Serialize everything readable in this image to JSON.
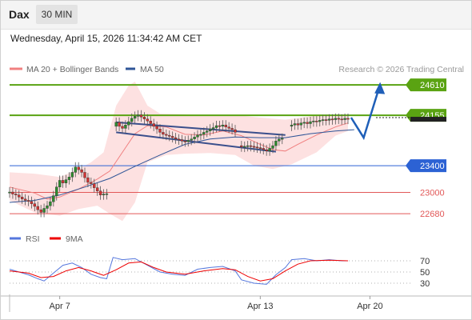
{
  "header": {
    "symbol": "Dax",
    "timeframe": "30 MIN",
    "datetime": "Wednesday, April 15, 2026 11:34:42 AM CET"
  },
  "legend": {
    "ma20": "MA 20 + Bollinger Bands",
    "ma50": "MA 50",
    "copyright": "Research © 2026 Trading Central",
    "rsi": "RSI",
    "rsi_ma": "9MA"
  },
  "colors": {
    "ma20": "#f08080",
    "ma50": "#2f5597",
    "bollinger_fill": "#fddede",
    "resistance": "#5aa312",
    "pivot": "#2c62d4",
    "support": "#e25858",
    "current_price": "#222222",
    "candle_up": "#2e8b2e",
    "candle_down": "#d23232",
    "rsi": "#5577dd",
    "rsi_ma": "#ee0000",
    "scenario_arrow": "#1f5fb8"
  },
  "chart_data": {
    "type": "candlestick",
    "price_axis": {
      "min": 22550,
      "max": 24780
    },
    "levels": [
      {
        "label": "24610",
        "value": 24610,
        "kind": "resistance"
      },
      {
        "label": "24155",
        "value": 24155,
        "kind": "resistance"
      },
      {
        "label": "23400",
        "value": 23400,
        "kind": "pivot"
      },
      {
        "label": "23000",
        "value": 23000,
        "kind": "support"
      },
      {
        "label": "22680",
        "value": 22680,
        "kind": "support"
      }
    ],
    "last_price": 24120,
    "x_ticks": [
      {
        "label": "Apr 7",
        "index": 16
      },
      {
        "label": "Apr 13",
        "index": 80
      },
      {
        "label": "Apr 20",
        "index": 115
      }
    ],
    "candles": [
      {
        "i": 0,
        "o": 22990,
        "c": 23005
      },
      {
        "i": 1,
        "o": 23005,
        "c": 22975
      },
      {
        "i": 2,
        "o": 22975,
        "c": 22960
      },
      {
        "i": 3,
        "o": 22960,
        "c": 22930
      },
      {
        "i": 4,
        "o": 22930,
        "c": 22900
      },
      {
        "i": 5,
        "o": 22900,
        "c": 22880
      },
      {
        "i": 6,
        "o": 22880,
        "c": 22865
      },
      {
        "i": 7,
        "o": 22865,
        "c": 22830
      },
      {
        "i": 8,
        "o": 22830,
        "c": 22790
      },
      {
        "i": 9,
        "o": 22790,
        "c": 22740
      },
      {
        "i": 10,
        "o": 22740,
        "c": 22700
      },
      {
        "i": 11,
        "o": 22700,
        "c": 22760
      },
      {
        "i": 12,
        "o": 22760,
        "c": 22800
      },
      {
        "i": 13,
        "o": 22800,
        "c": 22860
      },
      {
        "i": 14,
        "o": 22860,
        "c": 22950
      },
      {
        "i": 15,
        "o": 22950,
        "c": 23080
      },
      {
        "i": 16,
        "o": 23080,
        "c": 23180
      },
      {
        "i": 17,
        "o": 23180,
        "c": 23140
      },
      {
        "i": 18,
        "o": 23140,
        "c": 23190
      },
      {
        "i": 19,
        "o": 23190,
        "c": 23230
      },
      {
        "i": 20,
        "o": 23230,
        "c": 23300
      },
      {
        "i": 21,
        "o": 23300,
        "c": 23380
      },
      {
        "i": 22,
        "o": 23380,
        "c": 23340
      },
      {
        "i": 23,
        "o": 23340,
        "c": 23300
      },
      {
        "i": 24,
        "o": 23300,
        "c": 23220
      },
      {
        "i": 25,
        "o": 23220,
        "c": 23150
      },
      {
        "i": 26,
        "o": 23150,
        "c": 23130
      },
      {
        "i": 27,
        "o": 23130,
        "c": 23070
      },
      {
        "i": 28,
        "o": 23070,
        "c": 23020
      },
      {
        "i": 29,
        "o": 23020,
        "c": 22960
      },
      {
        "i": 30,
        "o": 22960,
        "c": 22975
      },
      {
        "i": 31,
        "o": 22975,
        "c": 22980
      },
      {
        "i": 34,
        "o": 23990,
        "c": 24050
      },
      {
        "i": 35,
        "o": 24050,
        "c": 23990
      },
      {
        "i": 36,
        "o": 23990,
        "c": 23960
      },
      {
        "i": 37,
        "o": 23960,
        "c": 24010
      },
      {
        "i": 38,
        "o": 24010,
        "c": 24060
      },
      {
        "i": 39,
        "o": 24060,
        "c": 24110
      },
      {
        "i": 40,
        "o": 24110,
        "c": 24140
      },
      {
        "i": 41,
        "o": 24140,
        "c": 24160
      },
      {
        "i": 42,
        "o": 24160,
        "c": 24130
      },
      {
        "i": 43,
        "o": 24130,
        "c": 24100
      },
      {
        "i": 44,
        "o": 24100,
        "c": 24070
      },
      {
        "i": 45,
        "o": 24070,
        "c": 24030
      },
      {
        "i": 46,
        "o": 24030,
        "c": 23990
      },
      {
        "i": 47,
        "o": 23990,
        "c": 23950
      },
      {
        "i": 48,
        "o": 23950,
        "c": 23900
      },
      {
        "i": 49,
        "o": 23900,
        "c": 23870
      },
      {
        "i": 50,
        "o": 23870,
        "c": 23855
      },
      {
        "i": 51,
        "o": 23855,
        "c": 23840
      },
      {
        "i": 52,
        "o": 23840,
        "c": 23820
      },
      {
        "i": 53,
        "o": 23820,
        "c": 23800
      },
      {
        "i": 54,
        "o": 23800,
        "c": 23790
      },
      {
        "i": 55,
        "o": 23790,
        "c": 23770
      },
      {
        "i": 56,
        "o": 23770,
        "c": 23760
      },
      {
        "i": 57,
        "o": 23760,
        "c": 23780
      },
      {
        "i": 58,
        "o": 23780,
        "c": 23800
      },
      {
        "i": 59,
        "o": 23800,
        "c": 23830
      },
      {
        "i": 60,
        "o": 23830,
        "c": 23860
      },
      {
        "i": 61,
        "o": 23860,
        "c": 23870
      },
      {
        "i": 62,
        "o": 23870,
        "c": 23900
      },
      {
        "i": 63,
        "o": 23900,
        "c": 23920
      },
      {
        "i": 64,
        "o": 23920,
        "c": 23950
      },
      {
        "i": 65,
        "o": 23950,
        "c": 23970
      },
      {
        "i": 66,
        "o": 23970,
        "c": 24000
      },
      {
        "i": 67,
        "o": 24000,
        "c": 23990
      },
      {
        "i": 68,
        "o": 23990,
        "c": 24010
      },
      {
        "i": 69,
        "o": 24010,
        "c": 23980
      },
      {
        "i": 70,
        "o": 23980,
        "c": 23960
      },
      {
        "i": 71,
        "o": 23960,
        "c": 23940
      },
      {
        "i": 72,
        "o": 23940,
        "c": 23900
      },
      {
        "i": 74,
        "o": 23700,
        "c": 23680
      },
      {
        "i": 75,
        "o": 23680,
        "c": 23690
      },
      {
        "i": 76,
        "o": 23690,
        "c": 23700
      },
      {
        "i": 77,
        "o": 23700,
        "c": 23690
      },
      {
        "i": 78,
        "o": 23690,
        "c": 23680
      },
      {
        "i": 79,
        "o": 23680,
        "c": 23670
      },
      {
        "i": 80,
        "o": 23670,
        "c": 23660
      },
      {
        "i": 81,
        "o": 23660,
        "c": 23640
      },
      {
        "i": 82,
        "o": 23640,
        "c": 23620
      },
      {
        "i": 83,
        "o": 23620,
        "c": 23660
      },
      {
        "i": 84,
        "o": 23660,
        "c": 23700
      },
      {
        "i": 85,
        "o": 23700,
        "c": 23770
      },
      {
        "i": 86,
        "o": 23770,
        "c": 23800
      },
      {
        "i": 87,
        "o": 23800,
        "c": 23810
      },
      {
        "i": 90,
        "o": 23990,
        "c": 24010
      },
      {
        "i": 91,
        "o": 24010,
        "c": 24030
      },
      {
        "i": 92,
        "o": 24030,
        "c": 24010
      },
      {
        "i": 93,
        "o": 24010,
        "c": 24040
      },
      {
        "i": 94,
        "o": 24040,
        "c": 24050
      },
      {
        "i": 95,
        "o": 24050,
        "c": 24030
      },
      {
        "i": 96,
        "o": 24030,
        "c": 24060
      },
      {
        "i": 97,
        "o": 24060,
        "c": 24070
      },
      {
        "i": 98,
        "o": 24070,
        "c": 24060
      },
      {
        "i": 99,
        "o": 24060,
        "c": 24080
      },
      {
        "i": 100,
        "o": 24080,
        "c": 24090
      },
      {
        "i": 101,
        "o": 24090,
        "c": 24080
      },
      {
        "i": 102,
        "o": 24080,
        "c": 24100
      },
      {
        "i": 103,
        "o": 24100,
        "c": 24090
      },
      {
        "i": 104,
        "o": 24090,
        "c": 24110
      },
      {
        "i": 105,
        "o": 24110,
        "c": 24100
      },
      {
        "i": 106,
        "o": 24100,
        "c": 24090
      },
      {
        "i": 107,
        "o": 24090,
        "c": 24110
      },
      {
        "i": 108,
        "o": 24110,
        "c": 24100
      }
    ],
    "ma20": [
      {
        "i": 0,
        "v": 23080
      },
      {
        "i": 8,
        "v": 22990
      },
      {
        "i": 12,
        "v": 22900
      },
      {
        "i": 16,
        "v": 22930
      },
      {
        "i": 22,
        "v": 23050
      },
      {
        "i": 28,
        "v": 23200
      },
      {
        "i": 32,
        "v": 23320
      },
      {
        "i": 36,
        "v": 23600
      },
      {
        "i": 40,
        "v": 23880
      },
      {
        "i": 44,
        "v": 24000
      },
      {
        "i": 50,
        "v": 23980
      },
      {
        "i": 56,
        "v": 23870
      },
      {
        "i": 62,
        "v": 23860
      },
      {
        "i": 68,
        "v": 23920
      },
      {
        "i": 74,
        "v": 23850
      },
      {
        "i": 80,
        "v": 23720
      },
      {
        "i": 84,
        "v": 23640
      },
      {
        "i": 88,
        "v": 23620
      },
      {
        "i": 92,
        "v": 23720
      },
      {
        "i": 98,
        "v": 23860
      },
      {
        "i": 104,
        "v": 23980
      },
      {
        "i": 108,
        "v": 24040
      }
    ],
    "ma50": [
      {
        "i": 0,
        "v": 22850
      },
      {
        "i": 8,
        "v": 22880
      },
      {
        "i": 16,
        "v": 22960
      },
      {
        "i": 24,
        "v": 23080
      },
      {
        "i": 32,
        "v": 23210
      },
      {
        "i": 40,
        "v": 23390
      },
      {
        "i": 48,
        "v": 23560
      },
      {
        "i": 56,
        "v": 23720
      },
      {
        "i": 64,
        "v": 23800
      },
      {
        "i": 72,
        "v": 23830
      },
      {
        "i": 80,
        "v": 23820
      },
      {
        "i": 88,
        "v": 23820
      },
      {
        "i": 96,
        "v": 23880
      },
      {
        "i": 104,
        "v": 23920
      },
      {
        "i": 110,
        "v": 23940
      }
    ],
    "bollinger_upper": [
      {
        "i": 0,
        "v": 23300
      },
      {
        "i": 8,
        "v": 23280
      },
      {
        "i": 16,
        "v": 23230
      },
      {
        "i": 22,
        "v": 23350
      },
      {
        "i": 26,
        "v": 23450
      },
      {
        "i": 30,
        "v": 23600
      },
      {
        "i": 34,
        "v": 24300
      },
      {
        "i": 38,
        "v": 24600
      },
      {
        "i": 40,
        "v": 24660
      },
      {
        "i": 44,
        "v": 24300
      },
      {
        "i": 48,
        "v": 24180
      },
      {
        "i": 56,
        "v": 24170
      },
      {
        "i": 64,
        "v": 24150
      },
      {
        "i": 72,
        "v": 24160
      },
      {
        "i": 80,
        "v": 24120
      },
      {
        "i": 88,
        "v": 24090
      },
      {
        "i": 96,
        "v": 24140
      },
      {
        "i": 104,
        "v": 24160
      },
      {
        "i": 108,
        "v": 24170
      }
    ],
    "bollinger_lower": [
      {
        "i": 0,
        "v": 22880
      },
      {
        "i": 8,
        "v": 22700
      },
      {
        "i": 16,
        "v": 22650
      },
      {
        "i": 22,
        "v": 22750
      },
      {
        "i": 28,
        "v": 22800
      },
      {
        "i": 32,
        "v": 22680
      },
      {
        "i": 36,
        "v": 22570
      },
      {
        "i": 40,
        "v": 22850
      },
      {
        "i": 44,
        "v": 23450
      },
      {
        "i": 50,
        "v": 23560
      },
      {
        "i": 56,
        "v": 23580
      },
      {
        "i": 64,
        "v": 23590
      },
      {
        "i": 72,
        "v": 23560
      },
      {
        "i": 78,
        "v": 23400
      },
      {
        "i": 84,
        "v": 23350
      },
      {
        "i": 90,
        "v": 23420
      },
      {
        "i": 98,
        "v": 23600
      },
      {
        "i": 104,
        "v": 23850
      },
      {
        "i": 108,
        "v": 23920
      }
    ],
    "channel_upper": [
      {
        "i": 34,
        "v": 24050
      },
      {
        "i": 88,
        "v": 23860
      }
    ],
    "channel_lower": [
      {
        "i": 34,
        "v": 23900
      },
      {
        "i": 85,
        "v": 23610
      }
    ],
    "scenario_path": [
      {
        "i": 109,
        "v": 24120
      },
      {
        "i": 113,
        "v": 23820
      },
      {
        "i": 118,
        "v": 24580
      }
    ],
    "rsi": {
      "range": [
        10,
        90
      ],
      "ticks": [
        70,
        50,
        30
      ],
      "rsi": [
        {
          "i": 0,
          "v": 55
        },
        {
          "i": 3,
          "v": 50
        },
        {
          "i": 6,
          "v": 45
        },
        {
          "i": 9,
          "v": 38
        },
        {
          "i": 11,
          "v": 34
        },
        {
          "i": 14,
          "v": 48
        },
        {
          "i": 17,
          "v": 62
        },
        {
          "i": 20,
          "v": 66
        },
        {
          "i": 23,
          "v": 58
        },
        {
          "i": 26,
          "v": 46
        },
        {
          "i": 29,
          "v": 40
        },
        {
          "i": 31,
          "v": 38
        },
        {
          "i": 33,
          "v": 76
        },
        {
          "i": 36,
          "v": 72
        },
        {
          "i": 40,
          "v": 74
        },
        {
          "i": 44,
          "v": 62
        },
        {
          "i": 48,
          "v": 50
        },
        {
          "i": 52,
          "v": 46
        },
        {
          "i": 56,
          "v": 44
        },
        {
          "i": 60,
          "v": 55
        },
        {
          "i": 64,
          "v": 58
        },
        {
          "i": 68,
          "v": 60
        },
        {
          "i": 72,
          "v": 52
        },
        {
          "i": 74,
          "v": 36
        },
        {
          "i": 78,
          "v": 30
        },
        {
          "i": 82,
          "v": 28
        },
        {
          "i": 85,
          "v": 45
        },
        {
          "i": 88,
          "v": 58
        },
        {
          "i": 90,
          "v": 72
        },
        {
          "i": 94,
          "v": 74
        },
        {
          "i": 98,
          "v": 70
        },
        {
          "i": 102,
          "v": 72
        },
        {
          "i": 106,
          "v": 70
        },
        {
          "i": 108,
          "v": 70
        }
      ],
      "ma": [
        {
          "i": 0,
          "v": 52
        },
        {
          "i": 6,
          "v": 48
        },
        {
          "i": 10,
          "v": 40
        },
        {
          "i": 14,
          "v": 42
        },
        {
          "i": 18,
          "v": 52
        },
        {
          "i": 22,
          "v": 58
        },
        {
          "i": 26,
          "v": 52
        },
        {
          "i": 30,
          "v": 44
        },
        {
          "i": 34,
          "v": 54
        },
        {
          "i": 38,
          "v": 66
        },
        {
          "i": 42,
          "v": 68
        },
        {
          "i": 46,
          "v": 58
        },
        {
          "i": 50,
          "v": 50
        },
        {
          "i": 56,
          "v": 46
        },
        {
          "i": 62,
          "v": 52
        },
        {
          "i": 68,
          "v": 56
        },
        {
          "i": 72,
          "v": 54
        },
        {
          "i": 76,
          "v": 42
        },
        {
          "i": 80,
          "v": 34
        },
        {
          "i": 84,
          "v": 38
        },
        {
          "i": 88,
          "v": 52
        },
        {
          "i": 92,
          "v": 64
        },
        {
          "i": 96,
          "v": 70
        },
        {
          "i": 102,
          "v": 71
        },
        {
          "i": 108,
          "v": 70
        }
      ]
    }
  }
}
